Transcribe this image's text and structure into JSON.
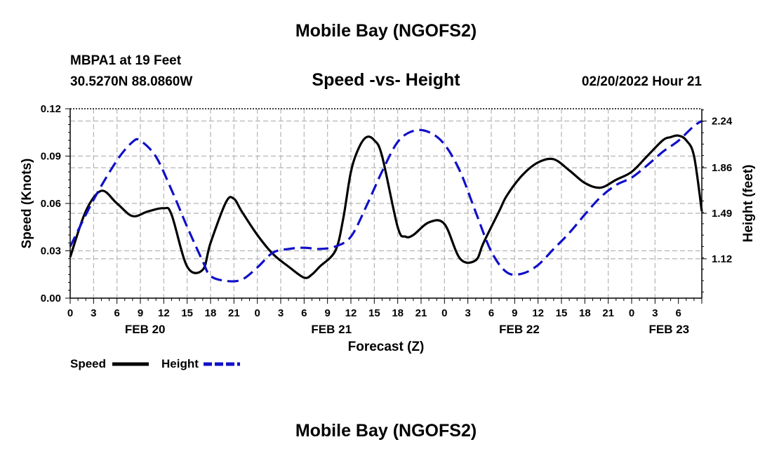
{
  "header": {
    "title": "Mobile Bay (NGOFS2)",
    "station": "MBPA1 at 19 Feet",
    "coords": "30.5270N  88.0860W",
    "subtitle": "Speed -vs- Height",
    "datetime": "02/20/2022 Hour 21"
  },
  "footer": {
    "title": "Mobile Bay (NGOFS2)"
  },
  "colors": {
    "speed": "#000000",
    "height": "#1010c8",
    "grid": "#b4b4b4"
  },
  "chart_data": {
    "type": "line",
    "xlabel": "Forecast (Z)",
    "ylabel": "Speed (Knots)",
    "y2label": "Height (feet)",
    "ylim": [
      0,
      0.12
    ],
    "y2lim": [
      0.8,
      2.34
    ],
    "x_range_hours": [
      0,
      81
    ],
    "yticks": [
      "0.00",
      "0.03",
      "0.06",
      "0.09",
      "0.12"
    ],
    "y2ticks": [
      "1.12",
      "1.49",
      "1.86",
      "2.24"
    ],
    "y2tick_values": [
      1.12,
      1.49,
      1.86,
      2.24
    ],
    "xtick_labels": [
      "0",
      "3",
      "6",
      "9",
      "12",
      "15",
      "18",
      "21",
      "0",
      "3",
      "6",
      "9",
      "12",
      "15",
      "18",
      "21",
      "0",
      "3",
      "6",
      "9",
      "12",
      "15",
      "18",
      "21",
      "0",
      "3",
      "6"
    ],
    "date_labels": [
      {
        "label": "FEB 20",
        "hour": 9.6
      },
      {
        "label": "FEB 21",
        "hour": 33.5
      },
      {
        "label": "FEB 22",
        "hour": 57.6
      },
      {
        "label": "FEB 23",
        "hour": 76.8
      }
    ],
    "grid": true,
    "legend_position": "bottom-left",
    "series": [
      {
        "name": "Speed",
        "axis": "left",
        "style": "solid",
        "x": [
          0,
          2,
          4,
          6,
          8,
          10,
          12,
          13,
          15,
          17,
          18,
          20,
          21,
          22,
          24,
          26,
          28,
          30,
          31,
          32,
          34,
          35,
          36,
          37,
          38,
          39,
          40,
          42,
          43,
          44,
          46,
          48,
          50,
          52,
          53,
          55,
          56,
          58,
          60,
          62,
          64,
          66,
          68,
          70,
          72,
          74,
          76,
          77,
          78,
          79,
          80,
          81
        ],
        "y": [
          0.026,
          0.055,
          0.068,
          0.06,
          0.052,
          0.055,
          0.057,
          0.053,
          0.02,
          0.018,
          0.035,
          0.061,
          0.063,
          0.055,
          0.04,
          0.028,
          0.02,
          0.013,
          0.015,
          0.02,
          0.03,
          0.05,
          0.08,
          0.095,
          0.102,
          0.1,
          0.09,
          0.045,
          0.039,
          0.04,
          0.048,
          0.047,
          0.025,
          0.024,
          0.035,
          0.055,
          0.065,
          0.078,
          0.086,
          0.088,
          0.081,
          0.073,
          0.07,
          0.075,
          0.08,
          0.09,
          0.1,
          0.102,
          0.103,
          0.1,
          0.09,
          0.055
        ]
      },
      {
        "name": "Height",
        "axis": "right",
        "style": "dashed",
        "x": [
          0,
          3,
          6,
          8,
          9,
          11,
          13,
          15,
          17,
          18,
          20,
          22,
          24,
          26,
          28,
          30,
          32,
          34,
          36,
          38,
          40,
          42,
          44,
          46,
          48,
          50,
          52,
          54,
          56,
          58,
          60,
          62,
          64,
          66,
          68,
          70,
          72,
          74,
          76,
          78,
          80,
          81
        ],
        "y": [
          1.22,
          1.6,
          1.92,
          2.07,
          2.08,
          1.95,
          1.68,
          1.38,
          1.1,
          0.98,
          0.94,
          0.95,
          1.05,
          1.17,
          1.2,
          1.21,
          1.2,
          1.22,
          1.3,
          1.55,
          1.83,
          2.07,
          2.16,
          2.15,
          2.05,
          1.83,
          1.5,
          1.18,
          1.01,
          1.0,
          1.07,
          1.2,
          1.33,
          1.48,
          1.62,
          1.72,
          1.78,
          1.88,
          1.99,
          2.08,
          2.2,
          2.24
        ]
      }
    ]
  }
}
